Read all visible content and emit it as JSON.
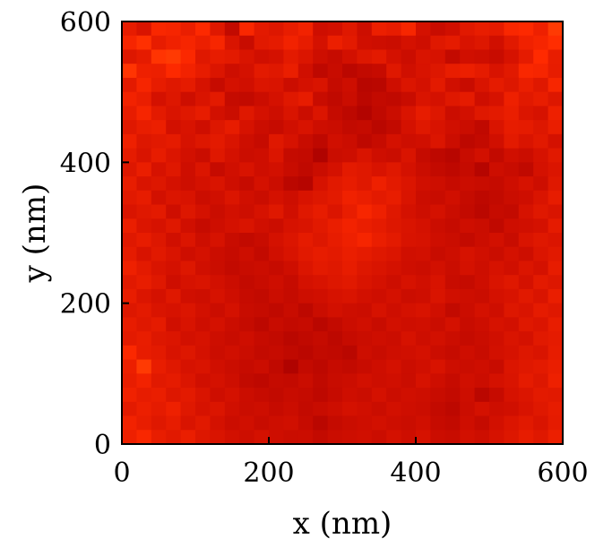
{
  "chart_data": {
    "type": "heatmap",
    "title": "",
    "xlabel": "x (nm)",
    "ylabel": "y (nm)",
    "xlim": [
      0,
      600
    ],
    "ylim": [
      0,
      600
    ],
    "x_ticks": [
      "0",
      "200",
      "400",
      "600"
    ],
    "y_ticks": [
      "0",
      "200",
      "400",
      "600"
    ],
    "grid": false,
    "legend": "none",
    "colormap": [
      "#6e0000",
      "#a80000",
      "#d00f00",
      "#ff2a00",
      "#ff7a10"
    ],
    "rows": 30,
    "cols": 30,
    "pixel_size_nm": 20,
    "values": [
      [
        0.62,
        0.55,
        0.72,
        0.7,
        0.64,
        0.74,
        0.58,
        0.41,
        0.72,
        0.6,
        0.57,
        0.63,
        0.68,
        0.49,
        0.51,
        0.58,
        0.48,
        0.65,
        0.62,
        0.71,
        0.52,
        0.45,
        0.5,
        0.59,
        0.63,
        0.61,
        0.72,
        0.74,
        0.66,
        0.8
      ],
      [
        0.7,
        0.77,
        0.62,
        0.67,
        0.7,
        0.65,
        0.71,
        0.55,
        0.45,
        0.59,
        0.61,
        0.68,
        0.62,
        0.52,
        0.65,
        0.6,
        0.5,
        0.48,
        0.46,
        0.52,
        0.49,
        0.58,
        0.61,
        0.54,
        0.57,
        0.5,
        0.59,
        0.67,
        0.7,
        0.76
      ],
      [
        0.57,
        0.61,
        0.78,
        0.8,
        0.73,
        0.58,
        0.62,
        0.6,
        0.55,
        0.5,
        0.52,
        0.6,
        0.56,
        0.48,
        0.44,
        0.51,
        0.57,
        0.6,
        0.52,
        0.47,
        0.55,
        0.53,
        0.42,
        0.5,
        0.48,
        0.45,
        0.53,
        0.61,
        0.75,
        0.63
      ],
      [
        0.78,
        0.66,
        0.65,
        0.74,
        0.68,
        0.62,
        0.56,
        0.48,
        0.52,
        0.6,
        0.58,
        0.64,
        0.5,
        0.39,
        0.45,
        0.37,
        0.41,
        0.44,
        0.58,
        0.5,
        0.54,
        0.57,
        0.63,
        0.65,
        0.61,
        0.54,
        0.59,
        0.72,
        0.7,
        0.62
      ],
      [
        0.6,
        0.7,
        0.62,
        0.58,
        0.61,
        0.53,
        0.44,
        0.52,
        0.5,
        0.56,
        0.55,
        0.47,
        0.52,
        0.55,
        0.43,
        0.48,
        0.35,
        0.36,
        0.49,
        0.56,
        0.52,
        0.6,
        0.5,
        0.45,
        0.55,
        0.61,
        0.57,
        0.64,
        0.58,
        0.71
      ],
      [
        0.68,
        0.64,
        0.52,
        0.57,
        0.48,
        0.55,
        0.6,
        0.43,
        0.41,
        0.47,
        0.52,
        0.58,
        0.62,
        0.45,
        0.4,
        0.46,
        0.37,
        0.42,
        0.4,
        0.45,
        0.55,
        0.52,
        0.58,
        0.61,
        0.49,
        0.53,
        0.66,
        0.59,
        0.63,
        0.57
      ],
      [
        0.62,
        0.7,
        0.6,
        0.55,
        0.58,
        0.62,
        0.51,
        0.46,
        0.58,
        0.52,
        0.48,
        0.55,
        0.47,
        0.56,
        0.43,
        0.38,
        0.32,
        0.4,
        0.46,
        0.55,
        0.62,
        0.57,
        0.47,
        0.51,
        0.58,
        0.6,
        0.64,
        0.56,
        0.53,
        0.66
      ],
      [
        0.58,
        0.63,
        0.65,
        0.51,
        0.54,
        0.49,
        0.57,
        0.62,
        0.53,
        0.47,
        0.44,
        0.5,
        0.54,
        0.48,
        0.46,
        0.41,
        0.43,
        0.36,
        0.41,
        0.52,
        0.58,
        0.54,
        0.5,
        0.46,
        0.4,
        0.55,
        0.62,
        0.61,
        0.57,
        0.64
      ],
      [
        0.66,
        0.57,
        0.59,
        0.61,
        0.53,
        0.57,
        0.6,
        0.55,
        0.48,
        0.44,
        0.58,
        0.53,
        0.45,
        0.39,
        0.5,
        0.47,
        0.39,
        0.44,
        0.52,
        0.48,
        0.5,
        0.56,
        0.47,
        0.38,
        0.42,
        0.5,
        0.6,
        0.55,
        0.59,
        0.52
      ],
      [
        0.61,
        0.55,
        0.62,
        0.56,
        0.51,
        0.46,
        0.58,
        0.52,
        0.47,
        0.49,
        0.56,
        0.43,
        0.42,
        0.3,
        0.46,
        0.48,
        0.55,
        0.49,
        0.46,
        0.55,
        0.43,
        0.39,
        0.35,
        0.45,
        0.51,
        0.41,
        0.5,
        0.47,
        0.53,
        0.59
      ],
      [
        0.57,
        0.64,
        0.53,
        0.58,
        0.49,
        0.56,
        0.44,
        0.5,
        0.54,
        0.49,
        0.51,
        0.45,
        0.4,
        0.46,
        0.52,
        0.6,
        0.58,
        0.54,
        0.58,
        0.52,
        0.46,
        0.42,
        0.39,
        0.43,
        0.34,
        0.48,
        0.45,
        0.4,
        0.52,
        0.56
      ],
      [
        0.63,
        0.55,
        0.57,
        0.52,
        0.48,
        0.52,
        0.55,
        0.49,
        0.44,
        0.52,
        0.47,
        0.37,
        0.34,
        0.53,
        0.59,
        0.62,
        0.58,
        0.66,
        0.6,
        0.56,
        0.5,
        0.48,
        0.44,
        0.47,
        0.45,
        0.43,
        0.49,
        0.53,
        0.48,
        0.58
      ],
      [
        0.59,
        0.62,
        0.51,
        0.56,
        0.54,
        0.47,
        0.5,
        0.56,
        0.5,
        0.46,
        0.52,
        0.48,
        0.54,
        0.57,
        0.6,
        0.67,
        0.64,
        0.6,
        0.63,
        0.55,
        0.47,
        0.45,
        0.5,
        0.43,
        0.39,
        0.41,
        0.46,
        0.49,
        0.55,
        0.62
      ],
      [
        0.55,
        0.58,
        0.6,
        0.49,
        0.57,
        0.52,
        0.46,
        0.51,
        0.48,
        0.53,
        0.58,
        0.5,
        0.58,
        0.62,
        0.56,
        0.63,
        0.71,
        0.66,
        0.58,
        0.52,
        0.48,
        0.52,
        0.46,
        0.42,
        0.37,
        0.44,
        0.42,
        0.53,
        0.58,
        0.55
      ],
      [
        0.64,
        0.56,
        0.53,
        0.58,
        0.5,
        0.44,
        0.49,
        0.52,
        0.55,
        0.5,
        0.47,
        0.53,
        0.55,
        0.59,
        0.64,
        0.68,
        0.64,
        0.61,
        0.57,
        0.55,
        0.52,
        0.47,
        0.44,
        0.49,
        0.46,
        0.4,
        0.49,
        0.5,
        0.52,
        0.61
      ],
      [
        0.58,
        0.62,
        0.57,
        0.5,
        0.56,
        0.48,
        0.53,
        0.45,
        0.41,
        0.45,
        0.52,
        0.56,
        0.61,
        0.57,
        0.62,
        0.66,
        0.7,
        0.64,
        0.6,
        0.54,
        0.53,
        0.49,
        0.46,
        0.42,
        0.47,
        0.51,
        0.45,
        0.55,
        0.58,
        0.56
      ],
      [
        0.61,
        0.54,
        0.59,
        0.55,
        0.49,
        0.52,
        0.47,
        0.44,
        0.48,
        0.42,
        0.5,
        0.54,
        0.59,
        0.62,
        0.6,
        0.64,
        0.61,
        0.58,
        0.56,
        0.5,
        0.51,
        0.45,
        0.48,
        0.53,
        0.5,
        0.46,
        0.52,
        0.48,
        0.56,
        0.59
      ],
      [
        0.66,
        0.6,
        0.55,
        0.52,
        0.57,
        0.5,
        0.46,
        0.42,
        0.45,
        0.47,
        0.44,
        0.49,
        0.56,
        0.6,
        0.58,
        0.62,
        0.57,
        0.55,
        0.52,
        0.49,
        0.47,
        0.51,
        0.46,
        0.52,
        0.48,
        0.53,
        0.5,
        0.56,
        0.52,
        0.62
      ],
      [
        0.59,
        0.63,
        0.58,
        0.49,
        0.53,
        0.55,
        0.51,
        0.47,
        0.42,
        0.45,
        0.49,
        0.44,
        0.52,
        0.54,
        0.57,
        0.59,
        0.55,
        0.52,
        0.48,
        0.53,
        0.5,
        0.54,
        0.45,
        0.43,
        0.49,
        0.55,
        0.58,
        0.52,
        0.6,
        0.57
      ],
      [
        0.63,
        0.56,
        0.52,
        0.58,
        0.5,
        0.48,
        0.53,
        0.49,
        0.44,
        0.41,
        0.47,
        0.43,
        0.48,
        0.5,
        0.53,
        0.55,
        0.51,
        0.49,
        0.52,
        0.47,
        0.49,
        0.55,
        0.5,
        0.48,
        0.46,
        0.52,
        0.54,
        0.59,
        0.55,
        0.64
      ],
      [
        0.57,
        0.6,
        0.55,
        0.53,
        0.56,
        0.51,
        0.47,
        0.52,
        0.45,
        0.43,
        0.4,
        0.45,
        0.38,
        0.46,
        0.51,
        0.48,
        0.47,
        0.53,
        0.49,
        0.52,
        0.54,
        0.5,
        0.41,
        0.47,
        0.52,
        0.49,
        0.57,
        0.55,
        0.61,
        0.58
      ],
      [
        0.62,
        0.58,
        0.61,
        0.5,
        0.54,
        0.49,
        0.52,
        0.47,
        0.43,
        0.38,
        0.45,
        0.42,
        0.44,
        0.36,
        0.42,
        0.47,
        0.5,
        0.45,
        0.51,
        0.49,
        0.5,
        0.46,
        0.52,
        0.45,
        0.48,
        0.53,
        0.51,
        0.58,
        0.56,
        0.63
      ],
      [
        0.6,
        0.63,
        0.57,
        0.56,
        0.51,
        0.53,
        0.48,
        0.45,
        0.49,
        0.44,
        0.41,
        0.36,
        0.4,
        0.43,
        0.38,
        0.44,
        0.46,
        0.49,
        0.47,
        0.53,
        0.48,
        0.51,
        0.47,
        0.43,
        0.46,
        0.5,
        0.55,
        0.52,
        0.59,
        0.61
      ],
      [
        0.73,
        0.62,
        0.6,
        0.54,
        0.57,
        0.52,
        0.47,
        0.5,
        0.46,
        0.42,
        0.44,
        0.4,
        0.37,
        0.41,
        0.4,
        0.36,
        0.48,
        0.45,
        0.49,
        0.5,
        0.52,
        0.47,
        0.44,
        0.49,
        0.45,
        0.51,
        0.53,
        0.57,
        0.55,
        0.62
      ],
      [
        0.65,
        0.8,
        0.63,
        0.58,
        0.53,
        0.55,
        0.5,
        0.46,
        0.44,
        0.47,
        0.4,
        0.3,
        0.42,
        0.38,
        0.44,
        0.41,
        0.45,
        0.49,
        0.52,
        0.47,
        0.5,
        0.54,
        0.48,
        0.46,
        0.49,
        0.45,
        0.56,
        0.58,
        0.6,
        0.64
      ],
      [
        0.63,
        0.68,
        0.59,
        0.61,
        0.56,
        0.5,
        0.52,
        0.48,
        0.41,
        0.39,
        0.43,
        0.42,
        0.46,
        0.4,
        0.45,
        0.47,
        0.51,
        0.48,
        0.5,
        0.46,
        0.53,
        0.49,
        0.44,
        0.5,
        0.47,
        0.52,
        0.55,
        0.61,
        0.57,
        0.66
      ],
      [
        0.67,
        0.62,
        0.64,
        0.57,
        0.6,
        0.55,
        0.49,
        0.52,
        0.47,
        0.44,
        0.41,
        0.45,
        0.43,
        0.39,
        0.44,
        0.49,
        0.46,
        0.52,
        0.47,
        0.5,
        0.48,
        0.45,
        0.42,
        0.48,
        0.36,
        0.44,
        0.53,
        0.56,
        0.6,
        0.59
      ],
      [
        0.6,
        0.65,
        0.61,
        0.66,
        0.58,
        0.53,
        0.56,
        0.5,
        0.46,
        0.48,
        0.44,
        0.47,
        0.42,
        0.45,
        0.48,
        0.52,
        0.5,
        0.46,
        0.51,
        0.49,
        0.47,
        0.42,
        0.38,
        0.47,
        0.52,
        0.48,
        0.5,
        0.54,
        0.58,
        0.62
      ],
      [
        0.68,
        0.63,
        0.58,
        0.62,
        0.55,
        0.59,
        0.52,
        0.47,
        0.5,
        0.45,
        0.48,
        0.5,
        0.44,
        0.36,
        0.43,
        0.46,
        0.49,
        0.51,
        0.48,
        0.46,
        0.5,
        0.44,
        0.41,
        0.49,
        0.43,
        0.51,
        0.56,
        0.59,
        0.55,
        0.61
      ],
      [
        0.66,
        0.72,
        0.63,
        0.59,
        0.64,
        0.57,
        0.55,
        0.51,
        0.48,
        0.52,
        0.49,
        0.46,
        0.47,
        0.42,
        0.46,
        0.48,
        0.5,
        0.47,
        0.52,
        0.49,
        0.53,
        0.47,
        0.45,
        0.51,
        0.48,
        0.53,
        0.57,
        0.62,
        0.58,
        0.65
      ]
    ]
  }
}
